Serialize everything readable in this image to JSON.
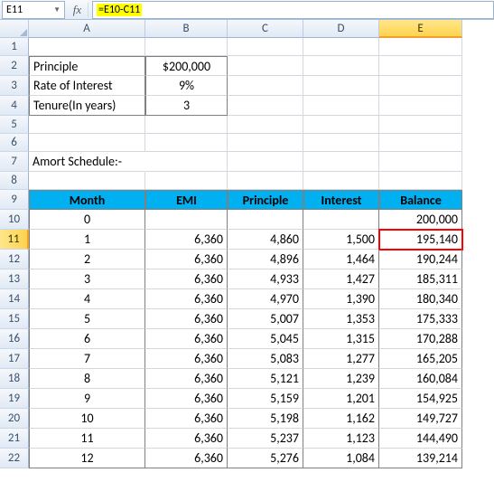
{
  "formulaBar": {
    "cellRef": "E11",
    "formula": "=E10-C11"
  },
  "columns": [
    "A",
    "B",
    "C",
    "D",
    "E"
  ],
  "selectedColumn": "E",
  "selectedRow": 11,
  "params": {
    "principleLabel": "Principle",
    "principleValue": "$200,000",
    "rateLabel": "Rate of Interest",
    "rateValue": "9%",
    "tenureLabel": "Tenure(In years)",
    "tenureValue": "3"
  },
  "scheduleTitle": "Amort Schedule:-",
  "headers": {
    "month": "Month",
    "emi": "EMI",
    "principle": "Principle",
    "interest": "Interest",
    "balance": "Balance"
  },
  "rows": [
    {
      "r": 10,
      "month": "0",
      "emi": "",
      "principle": "",
      "interest": "",
      "balance": "200,000"
    },
    {
      "r": 11,
      "month": "1",
      "emi": "6,360",
      "principle": "4,860",
      "interest": "1,500",
      "balance": "195,140",
      "highlight": true
    },
    {
      "r": 12,
      "month": "2",
      "emi": "6,360",
      "principle": "4,896",
      "interest": "1,464",
      "balance": "190,244"
    },
    {
      "r": 13,
      "month": "3",
      "emi": "6,360",
      "principle": "4,933",
      "interest": "1,427",
      "balance": "185,311"
    },
    {
      "r": 14,
      "month": "4",
      "emi": "6,360",
      "principle": "4,970",
      "interest": "1,390",
      "balance": "180,340"
    },
    {
      "r": 15,
      "month": "5",
      "emi": "6,360",
      "principle": "5,007",
      "interest": "1,353",
      "balance": "175,333"
    },
    {
      "r": 16,
      "month": "6",
      "emi": "6,360",
      "principle": "5,045",
      "interest": "1,315",
      "balance": "170,288"
    },
    {
      "r": 17,
      "month": "7",
      "emi": "6,360",
      "principle": "5,083",
      "interest": "1,277",
      "balance": "165,205"
    },
    {
      "r": 18,
      "month": "8",
      "emi": "6,360",
      "principle": "5,121",
      "interest": "1,239",
      "balance": "160,084"
    },
    {
      "r": 19,
      "month": "9",
      "emi": "6,360",
      "principle": "5,159",
      "interest": "1,201",
      "balance": "154,925"
    },
    {
      "r": 20,
      "month": "10",
      "emi": "6,360",
      "principle": "5,198",
      "interest": "1,162",
      "balance": "149,727"
    },
    {
      "r": 21,
      "month": "11",
      "emi": "6,360",
      "principle": "5,237",
      "interest": "1,123",
      "balance": "144,490"
    },
    {
      "r": 22,
      "month": "12",
      "emi": "6,360",
      "principle": "5,276",
      "interest": "1,084",
      "balance": "139,214"
    }
  ],
  "colors": {
    "headerBg": "#00b0f0",
    "highlightBorder": "#ff0000",
    "formulaHighlight": "#ffff00"
  }
}
